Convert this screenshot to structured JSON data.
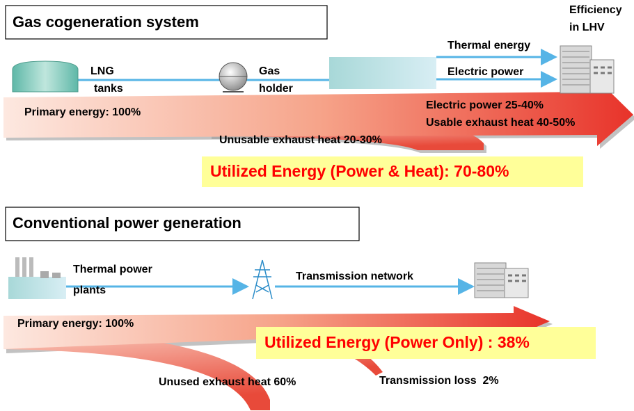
{
  "cogeneration": {
    "title": "Gas cogeneration system",
    "lng_tanks": [
      "LNG",
      "tanks"
    ],
    "gas_holder": [
      "Gas",
      "holder"
    ],
    "efficiency": [
      "Efficiency",
      "in LHV"
    ],
    "thermal_energy": "Thermal energy",
    "electric_power": "Electric power",
    "primary_energy": "Primary energy: 100%",
    "electric_power_share": "Electric power 25-40%",
    "usable_heat": "Usable exhaust heat 40-50%",
    "unusable_heat": "Unusable exhaust heat 20-30%",
    "utilized": "Utilized Energy (Power & Heat): 70-80%"
  },
  "conventional": {
    "title": "Conventional power generation",
    "thermal_plants": [
      "Thermal power",
      "plants"
    ],
    "transmission_network": "Transmission network",
    "primary_energy": "Primary energy: 100%",
    "utilized": "Utilized Energy (Power Only) : 38%",
    "unused_heat": "Unused exhaust heat 60%",
    "transmission_loss": "Transmission loss  2%"
  }
}
